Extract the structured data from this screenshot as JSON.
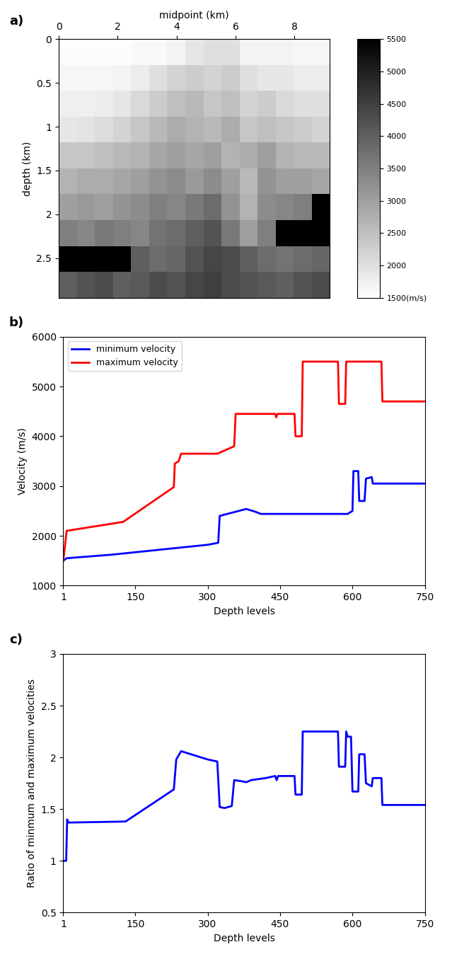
{
  "chart_data": [
    {
      "type": "heatmap",
      "panel_label": "a)",
      "xlabel": "midpoint (km)",
      "ylabel": "depth (km)",
      "xlim": [
        0,
        9.2
      ],
      "ylim": [
        2.95,
        0
      ],
      "xticks": [
        0,
        2,
        4,
        6,
        8
      ],
      "yticks": [
        0,
        0.5,
        1,
        1.5,
        2,
        2.5
      ],
      "color": "gray_r",
      "colorbar_range": [
        1500,
        5500
      ],
      "colorbar_ticks": [
        {
          "value": 1500,
          "label": "1500(m/s)"
        },
        2000,
        2500,
        3000,
        3500,
        4000,
        4500,
        5000,
        5500
      ],
      "cells": [
        [
          1550,
          1550,
          1550,
          1550,
          1600,
          1600,
          1700,
          1900,
          2000,
          2000,
          1700,
          1700,
          1700,
          1650,
          1650
        ],
        [
          1650,
          1650,
          1650,
          1700,
          1800,
          2000,
          2200,
          2300,
          2200,
          2300,
          2000,
          1900,
          1900,
          1800,
          1800
        ],
        [
          1750,
          1750,
          1800,
          1900,
          2100,
          2300,
          2500,
          2600,
          2400,
          2500,
          2200,
          2300,
          2100,
          2000,
          2000
        ],
        [
          1900,
          1950,
          2050,
          2200,
          2400,
          2600,
          2800,
          2700,
          2600,
          2800,
          2400,
          2500,
          2400,
          2300,
          2200
        ],
        [
          2400,
          2400,
          2500,
          2600,
          2700,
          2900,
          3000,
          2900,
          3000,
          2700,
          2800,
          3000,
          2700,
          2600,
          2600
        ],
        [
          2700,
          2800,
          2800,
          2900,
          3000,
          3200,
          3300,
          3100,
          3300,
          3000,
          2600,
          3200,
          3000,
          3000,
          2900
        ],
        [
          3000,
          3100,
          3000,
          3200,
          3300,
          3500,
          3400,
          3600,
          3800,
          3200,
          2700,
          3300,
          3400,
          3500,
          5500
        ],
        [
          3500,
          3400,
          3600,
          3500,
          3400,
          3700,
          3800,
          4000,
          4200,
          3600,
          3000,
          3500,
          5500,
          5500,
          5500
        ],
        [
          5500,
          5500,
          5500,
          5500,
          4000,
          3800,
          3900,
          4200,
          4400,
          4300,
          4000,
          3800,
          3700,
          3800,
          3900
        ],
        [
          4000,
          4200,
          4300,
          4000,
          4100,
          4300,
          4200,
          4400,
          4500,
          4300,
          4200,
          4100,
          4000,
          4200,
          4300
        ]
      ]
    },
    {
      "type": "line",
      "panel_label": "b)",
      "xlabel": "Depth levels",
      "ylabel": "Velocity (m/s)",
      "xlim": [
        1,
        750
      ],
      "ylim": [
        1000,
        6000
      ],
      "xticks": [
        1,
        150,
        300,
        450,
        600,
        750
      ],
      "yticks": [
        1000,
        2000,
        3000,
        4000,
        5000,
        6000
      ],
      "legend": "upper left",
      "series": [
        {
          "name": "minimum velocity",
          "color": "#0000ff",
          "x": [
            1,
            8,
            100,
            200,
            300,
            322,
            325,
            380,
            400,
            410,
            590,
            600,
            602,
            612,
            614,
            625,
            628,
            640,
            642,
            750
          ],
          "values": [
            1500,
            1550,
            1620,
            1720,
            1820,
            1860,
            2400,
            2540,
            2480,
            2440,
            2440,
            2500,
            3300,
            3300,
            2700,
            2700,
            3150,
            3180,
            3050,
            3050
          ]
        },
        {
          "name": "maximum velocity",
          "color": "#ff0000",
          "x": [
            1,
            8,
            125,
            230,
            232,
            240,
            245,
            320,
            355,
            358,
            440,
            442,
            445,
            480,
            482,
            495,
            497,
            570,
            572,
            585,
            587,
            660,
            662,
            750
          ],
          "values": [
            1500,
            2100,
            2280,
            2980,
            3450,
            3500,
            3650,
            3650,
            3800,
            4450,
            4450,
            4380,
            4450,
            4450,
            4000,
            4000,
            5500,
            5500,
            4650,
            4650,
            5500,
            5500,
            4700,
            4700
          ]
        }
      ]
    },
    {
      "type": "line",
      "panel_label": "c)",
      "xlabel": "Depth levels",
      "ylabel": "Ratio of minmum and maximum velocities",
      "xlim": [
        1,
        750
      ],
      "ylim": [
        0.5,
        3
      ],
      "xticks": [
        1,
        150,
        300,
        450,
        600,
        750
      ],
      "yticks": [
        0.5,
        1,
        1.5,
        2,
        2.5,
        3
      ],
      "series": [
        {
          "color": "#0000ff",
          "x": [
            1,
            7,
            9,
            12,
            130,
            230,
            235,
            245,
            300,
            320,
            325,
            335,
            350,
            355,
            370,
            380,
            390,
            420,
            440,
            443,
            446,
            480,
            482,
            495,
            497,
            570,
            572,
            585,
            587,
            590,
            597,
            600,
            612,
            614,
            625,
            628,
            640,
            642,
            660,
            662,
            750
          ],
          "values": [
            1.0,
            1.0,
            1.4,
            1.37,
            1.38,
            1.69,
            1.98,
            2.06,
            1.98,
            1.96,
            1.52,
            1.51,
            1.53,
            1.78,
            1.77,
            1.76,
            1.78,
            1.8,
            1.82,
            1.78,
            1.82,
            1.82,
            1.64,
            1.64,
            2.25,
            2.25,
            1.91,
            1.91,
            2.25,
            2.2,
            2.2,
            1.67,
            1.67,
            2.03,
            2.03,
            1.75,
            1.72,
            1.8,
            1.8,
            1.54,
            1.54
          ]
        }
      ]
    }
  ]
}
